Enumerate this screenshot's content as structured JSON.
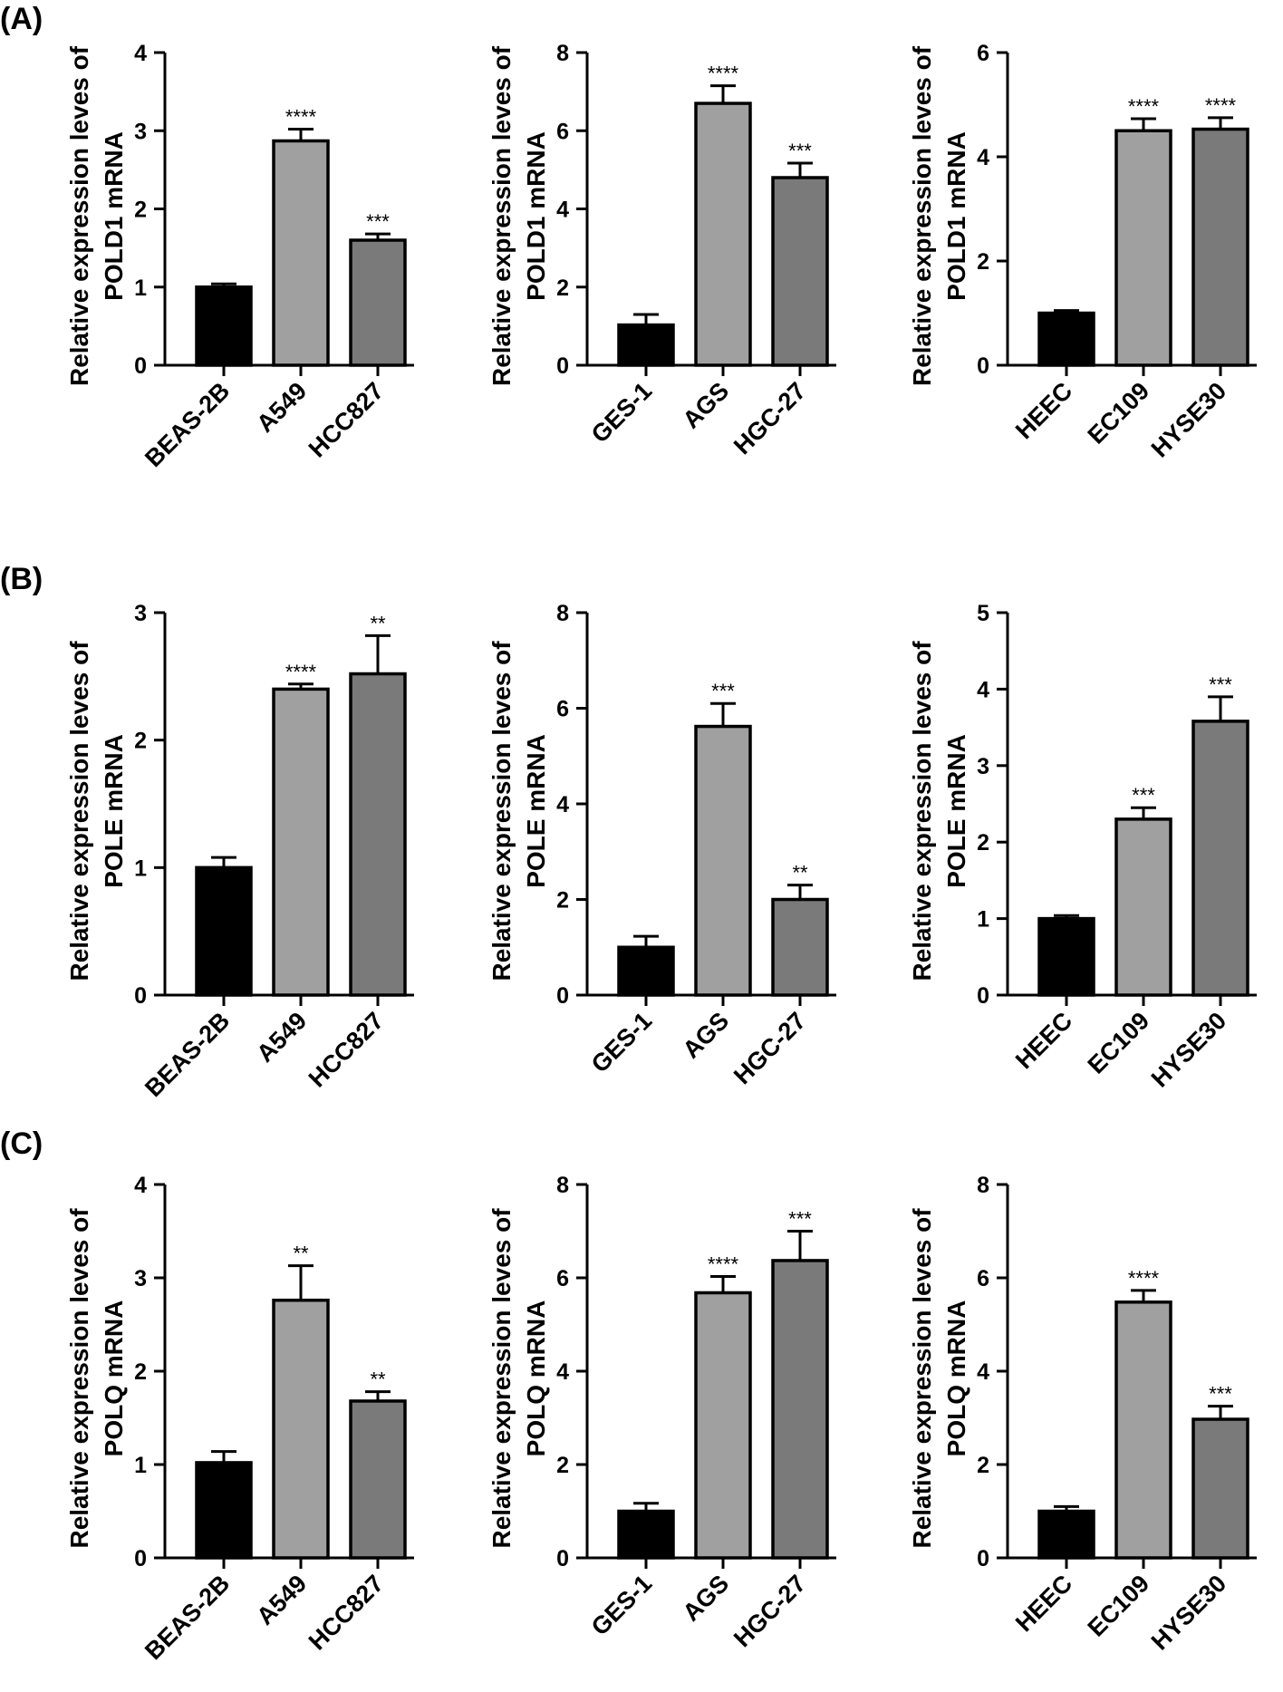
{
  "panel_labels": [
    "(A)",
    "(B)",
    "(C)"
  ],
  "chart_data": [
    {
      "type": "bar",
      "panel": "A",
      "ylabel_line1": "Relative expression leves of",
      "ylabel_line2": "POLD1 mRNA",
      "categories": [
        "BEAS-2B",
        "A549",
        "HCC827"
      ],
      "values": [
        1.0,
        2.87,
        1.6
      ],
      "errors": [
        0.04,
        0.15,
        0.08
      ],
      "significance": [
        "",
        "****",
        "***"
      ],
      "ylim": [
        0,
        4
      ],
      "yticks": [
        0,
        1,
        2,
        3,
        4
      ],
      "colors": [
        "#000000",
        "#a0a0a0",
        "#7a7a7a"
      ]
    },
    {
      "type": "bar",
      "panel": "A",
      "ylabel_line1": "Relative expression leves of",
      "ylabel_line2": "POLD1 mRNA",
      "categories": [
        "GES-1",
        "AGS",
        "HGC-27"
      ],
      "values": [
        1.03,
        6.7,
        4.8
      ],
      "errors": [
        0.27,
        0.45,
        0.37
      ],
      "significance": [
        "",
        "****",
        "***"
      ],
      "ylim": [
        0,
        8
      ],
      "yticks": [
        0,
        2,
        4,
        6,
        8
      ],
      "colors": [
        "#000000",
        "#a0a0a0",
        "#7a7a7a"
      ]
    },
    {
      "type": "bar",
      "panel": "A",
      "ylabel_line1": "Relative expression leves of",
      "ylabel_line2": "POLD1 mRNA",
      "categories": [
        "HEEC",
        "EC109",
        "HYSE30"
      ],
      "values": [
        1.0,
        4.5,
        4.53
      ],
      "errors": [
        0.05,
        0.23,
        0.22
      ],
      "significance": [
        "",
        "****",
        "****"
      ],
      "ylim": [
        0,
        6
      ],
      "yticks": [
        0,
        2,
        4,
        6
      ],
      "colors": [
        "#000000",
        "#a0a0a0",
        "#7a7a7a"
      ]
    },
    {
      "type": "bar",
      "panel": "B",
      "ylabel_line1": "Relative expression leves of",
      "ylabel_line2": "POLE mRNA",
      "categories": [
        "BEAS-2B",
        "A549",
        "HCC827"
      ],
      "values": [
        1.0,
        2.4,
        2.52
      ],
      "errors": [
        0.08,
        0.04,
        0.3
      ],
      "significance": [
        "",
        "****",
        "**"
      ],
      "ylim": [
        0,
        3
      ],
      "yticks": [
        0,
        1,
        2,
        3
      ],
      "colors": [
        "#000000",
        "#a0a0a0",
        "#7a7a7a"
      ]
    },
    {
      "type": "bar",
      "panel": "B",
      "ylabel_line1": "Relative expression leves of",
      "ylabel_line2": "POLE mRNA",
      "categories": [
        "GES-1",
        "AGS",
        "HGC-27"
      ],
      "values": [
        1.0,
        5.62,
        2.0
      ],
      "errors": [
        0.23,
        0.48,
        0.3
      ],
      "significance": [
        "",
        "***",
        "**"
      ],
      "ylim": [
        0,
        8
      ],
      "yticks": [
        0,
        2,
        4,
        6,
        8
      ],
      "colors": [
        "#000000",
        "#a0a0a0",
        "#7a7a7a"
      ]
    },
    {
      "type": "bar",
      "panel": "B",
      "ylabel_line1": "Relative expression leves of",
      "ylabel_line2": "POLE mRNA",
      "categories": [
        "HEEC",
        "EC109",
        "HYSE30"
      ],
      "values": [
        1.0,
        2.3,
        3.58
      ],
      "errors": [
        0.04,
        0.15,
        0.32
      ],
      "significance": [
        "",
        "***",
        "***"
      ],
      "ylim": [
        0,
        5
      ],
      "yticks": [
        0,
        1,
        2,
        3,
        4,
        5
      ],
      "colors": [
        "#000000",
        "#a0a0a0",
        "#7a7a7a"
      ]
    },
    {
      "type": "bar",
      "panel": "C",
      "ylabel_line1": "Relative expression leves of",
      "ylabel_line2": "POLQ mRNA",
      "categories": [
        "BEAS-2B",
        "A549",
        "HCC827"
      ],
      "values": [
        1.02,
        2.76,
        1.68
      ],
      "errors": [
        0.12,
        0.37,
        0.1
      ],
      "significance": [
        "",
        "**",
        "**"
      ],
      "ylim": [
        0,
        4
      ],
      "yticks": [
        0,
        1,
        2,
        3,
        4
      ],
      "colors": [
        "#000000",
        "#a0a0a0",
        "#7a7a7a"
      ]
    },
    {
      "type": "bar",
      "panel": "C",
      "ylabel_line1": "Relative expression leves of",
      "ylabel_line2": "POLQ mRNA",
      "categories": [
        "GES-1",
        "AGS",
        "HGC-27"
      ],
      "values": [
        1.0,
        5.68,
        6.37
      ],
      "errors": [
        0.17,
        0.35,
        0.63
      ],
      "significance": [
        "",
        "****",
        "***"
      ],
      "ylim": [
        0,
        8
      ],
      "yticks": [
        0,
        2,
        4,
        6,
        8
      ],
      "colors": [
        "#000000",
        "#a0a0a0",
        "#7a7a7a"
      ]
    },
    {
      "type": "bar",
      "panel": "C",
      "ylabel_line1": "Relative expression leves of",
      "ylabel_line2": "POLQ mRNA",
      "categories": [
        "HEEC",
        "EC109",
        "HYSE30"
      ],
      "values": [
        1.0,
        5.48,
        2.97
      ],
      "errors": [
        0.1,
        0.25,
        0.28
      ],
      "significance": [
        "",
        "****",
        "***"
      ],
      "ylim": [
        0,
        8
      ],
      "yticks": [
        0,
        2,
        4,
        6,
        8
      ],
      "colors": [
        "#000000",
        "#a0a0a0",
        "#7a7a7a"
      ]
    }
  ]
}
